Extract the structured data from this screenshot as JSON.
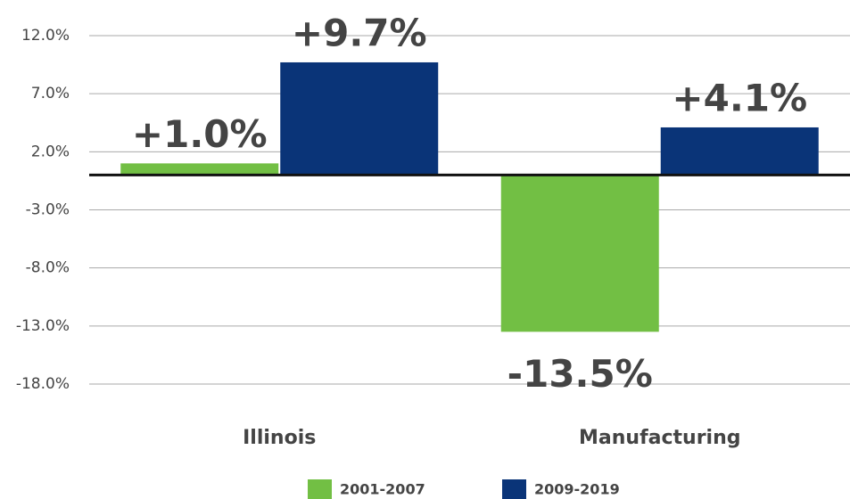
{
  "chart_data": {
    "type": "bar",
    "categories": [
      "Illinois",
      "Manufacturing"
    ],
    "series": [
      {
        "name": "2001-2007",
        "color": "#72bf44",
        "values": [
          1.0,
          -13.5
        ],
        "value_labels": [
          "+1.0%",
          "-13.5%"
        ]
      },
      {
        "name": "2009-2019",
        "color": "#0a3478",
        "values": [
          9.7,
          4.1
        ],
        "value_labels": [
          "+9.7%",
          "+4.1%"
        ]
      }
    ],
    "ylim": [
      -18,
      12
    ],
    "yticks": [
      {
        "value": 12,
        "label": "12.0%"
      },
      {
        "value": 7,
        "label": "7.0%"
      },
      {
        "value": 2,
        "label": "2.0%"
      },
      {
        "value": -3,
        "label": "-3.0%"
      },
      {
        "value": -8,
        "label": "-8.0%"
      },
      {
        "value": -13,
        "label": "-13.0%"
      },
      {
        "value": -18,
        "label": "-18.0%"
      }
    ],
    "grid": true,
    "legend": "bottom"
  }
}
